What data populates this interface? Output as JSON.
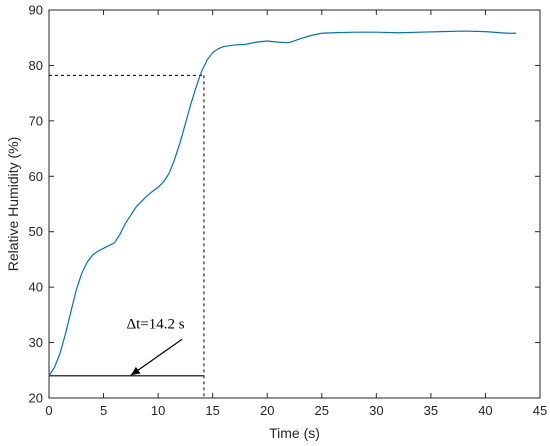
{
  "chart_data": {
    "type": "line",
    "title": "",
    "xlabel": "Time (s)",
    "ylabel": "Relative Humidity (%)",
    "xlim": [
      0,
      45
    ],
    "ylim": [
      20,
      90
    ],
    "xticks": [
      0,
      5,
      10,
      15,
      20,
      25,
      30,
      35,
      40,
      45
    ],
    "yticks": [
      20,
      30,
      40,
      50,
      60,
      70,
      80,
      90
    ],
    "grid": false,
    "line_color": "#0072BD",
    "series": [
      {
        "x": [
          0,
          0.5,
          1,
          1.5,
          2,
          2.5,
          3,
          3.5,
          4,
          4.5,
          5,
          5.5,
          6,
          6.5,
          7,
          7.5,
          8,
          8.5,
          9,
          9.5,
          10,
          10.5,
          11,
          11.5,
          12,
          12.5,
          13,
          13.5,
          14,
          14.5,
          15,
          15.5,
          16,
          17,
          18,
          19,
          20,
          21,
          22,
          23,
          24,
          25,
          26,
          28,
          30,
          32,
          34,
          36,
          38,
          40,
          42,
          42.8
        ],
        "y": [
          24,
          25.5,
          28,
          31.5,
          35.5,
          39.5,
          42.5,
          44.5,
          45.8,
          46.5,
          47,
          47.5,
          48,
          49.5,
          51.5,
          53,
          54.5,
          55.5,
          56.5,
          57.3,
          58,
          59,
          60.5,
          63,
          66,
          69.5,
          73,
          76.2,
          79,
          81,
          82.3,
          83,
          83.4,
          83.7,
          83.8,
          84.2,
          84.4,
          84.2,
          84.1,
          84.8,
          85.4,
          85.8,
          85.9,
          86,
          86,
          85.9,
          86,
          86.1,
          86.2,
          86.1,
          85.8,
          85.8
        ]
      }
    ],
    "annotations": {
      "delta_label": "Δt=14.2 s",
      "response_time": 14.2,
      "start_level": 24,
      "target_level": 78.2
    }
  }
}
